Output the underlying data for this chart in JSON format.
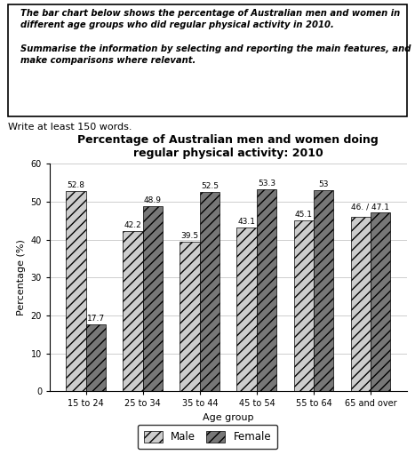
{
  "title_line1": "Percentage of Australian men and women doing",
  "title_line2": "regular physical activity: 2010",
  "categories": [
    "15 to 24",
    "25 to 34",
    "35 to 44",
    "45 to 54",
    "55 to 64",
    "65 and over"
  ],
  "male_values": [
    52.8,
    42.2,
    39.5,
    43.1,
    45.1,
    46.0
  ],
  "female_values": [
    17.7,
    48.9,
    52.5,
    53.3,
    53.0,
    47.1
  ],
  "male_labels": [
    "52.8",
    "42.2",
    "39.5",
    "43.1",
    "45.1",
    "46."
  ],
  "female_labels": [
    "17.7",
    "48.9",
    "52.5",
    "53.3",
    "53",
    "47.1"
  ],
  "ylabel": "Percentage (%)",
  "xlabel": "Age group",
  "ylim": [
    0,
    60
  ],
  "yticks": [
    0,
    10,
    20,
    30,
    40,
    50,
    60
  ],
  "bar_width": 0.35,
  "background_color": "#ffffff",
  "box_text": "The bar chart below shows the percentage of Australian men and women in\ndifferent age groups who did regular physical activity in 2010.\n\nSummarise the information by selecting and reporting the main features, and\nmake comparisons where relevant.",
  "below_box_text": "Write at least 150 words.",
  "label_fontsize": 6.5,
  "axis_fontsize": 8,
  "title_fontsize": 9
}
